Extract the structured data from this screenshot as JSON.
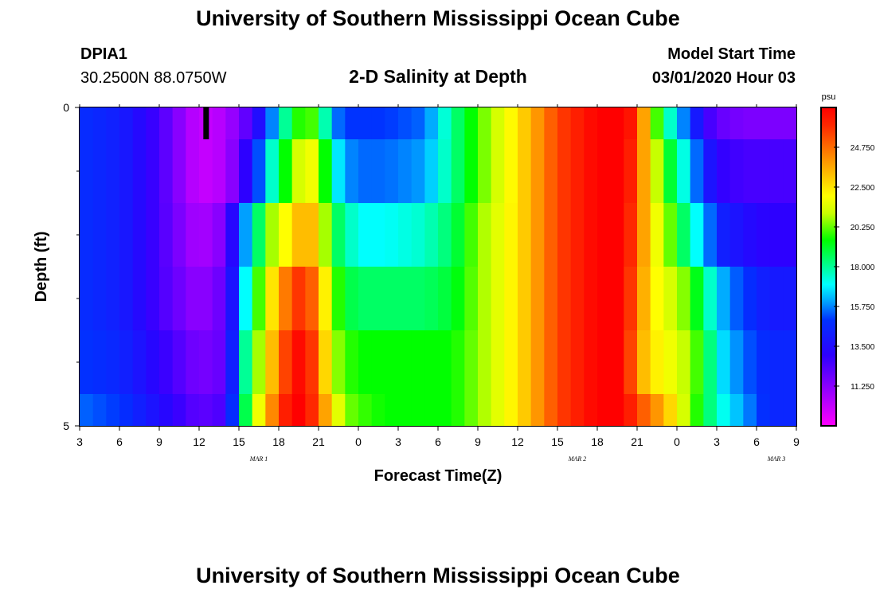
{
  "header": {
    "title": "University of Southern Mississippi Ocean Cube",
    "station_id": "DPIA1",
    "station_coords": "30.2500N 88.0750W",
    "plot_title": "2-D Salinity at Depth",
    "model_start_label": "Model Start Time",
    "model_start_value": "03/01/2020 Hour 03"
  },
  "footer": {
    "title": "University of Southern Mississippi Ocean Cube"
  },
  "chart_data": {
    "type": "heatmap",
    "title": "2-D Salinity at Depth",
    "xlabel": "Forecast Time(Z)",
    "ylabel": "Depth (ft)",
    "x_tick_labels": [
      "3",
      "6",
      "9",
      "12",
      "15",
      "18",
      "21",
      "0",
      "3",
      "6",
      "9",
      "12",
      "15",
      "18",
      "21",
      "0",
      "3",
      "6",
      "9"
    ],
    "date_labels": [
      {
        "text": "MAR 1",
        "tick_index": 4.5
      },
      {
        "text": "MAR 2",
        "tick_index": 12.5
      },
      {
        "text": "MAR 3",
        "tick_index": 17.5
      }
    ],
    "xlim_hours": [
      0,
      54
    ],
    "ylim_ft": [
      0,
      5
    ],
    "y_tick_labels": [
      "0",
      "5"
    ],
    "y_minor_ticks": 4,
    "colorbar": {
      "unit": "psu",
      "min": 9.0,
      "max": 27.0,
      "tick_labels": [
        "11.250",
        "13.500",
        "15.750",
        "18.000",
        "20.250",
        "22.500",
        "24.750"
      ],
      "tick_values": [
        11.25,
        13.5,
        15.75,
        18.0,
        20.25,
        22.5,
        24.75
      ]
    },
    "marker": {
      "hour": 9.5,
      "depth_from": 0,
      "depth_to": 0.5,
      "color": "#000000"
    },
    "layer_depths_ft": [
      0.25,
      1.0,
      2.0,
      3.0,
      4.0,
      4.75
    ],
    "layer_bounds_ft": [
      0,
      0.5,
      1.5,
      2.5,
      3.5,
      4.5,
      5.0
    ],
    "key_hours": [
      0,
      3,
      6,
      9,
      11,
      12,
      13,
      14,
      15,
      16,
      17,
      18,
      19,
      20,
      21,
      23,
      26,
      28,
      30,
      33,
      36,
      39,
      41,
      42,
      43,
      44,
      45,
      46,
      47,
      48,
      50,
      52,
      54
    ],
    "layers": [
      [
        14.8,
        14.2,
        12.5,
        10.0,
        10.5,
        11.5,
        12.5,
        14.5,
        17.0,
        19.0,
        20.5,
        19.5,
        16.0,
        15.0,
        15.0,
        15.0,
        15.5,
        18.0,
        20.0,
        22.5,
        25.5,
        27.0,
        27.0,
        26.0,
        21.5,
        18.5,
        16.5,
        15.0,
        13.0,
        12.0,
        11.5,
        11.5,
        11.5
      ],
      [
        14.8,
        14.2,
        12.5,
        10.0,
        10.5,
        12.0,
        14.0,
        16.5,
        18.5,
        20.5,
        22.0,
        21.5,
        17.5,
        16.0,
        15.5,
        15.5,
        16.0,
        18.0,
        20.0,
        22.5,
        25.5,
        27.0,
        27.0,
        25.5,
        22.0,
        20.0,
        18.0,
        16.5,
        14.5,
        13.0,
        12.5,
        12.5,
        12.5
      ],
      [
        14.8,
        14.2,
        12.5,
        10.5,
        11.5,
        15.0,
        17.0,
        20.0,
        21.5,
        22.5,
        24.0,
        22.5,
        19.0,
        18.0,
        17.0,
        17.0,
        17.5,
        18.5,
        20.5,
        22.5,
        25.5,
        27.0,
        27.0,
        25.0,
        22.5,
        21.0,
        19.5,
        17.5,
        16.5,
        14.5,
        13.5,
        13.0,
        13.0
      ],
      [
        14.8,
        14.2,
        12.5,
        11.0,
        12.0,
        15.5,
        18.5,
        21.5,
        23.5,
        25.5,
        26.0,
        24.0,
        20.5,
        19.0,
        18.5,
        18.5,
        18.5,
        19.0,
        20.5,
        22.5,
        25.5,
        27.0,
        27.0,
        24.5,
        22.5,
        21.5,
        21.0,
        20.0,
        18.5,
        16.5,
        15.0,
        14.0,
        14.0
      ],
      [
        15.0,
        14.5,
        13.0,
        11.5,
        12.0,
        16.5,
        19.5,
        22.0,
        24.5,
        26.5,
        27.0,
        24.5,
        21.0,
        20.0,
        19.5,
        19.5,
        19.5,
        19.5,
        20.5,
        22.5,
        25.5,
        27.0,
        27.0,
        24.0,
        22.5,
        22.0,
        21.5,
        20.5,
        19.5,
        17.0,
        15.5,
        14.5,
        14.5
      ],
      [
        15.5,
        15.0,
        13.5,
        12.0,
        12.5,
        17.0,
        20.5,
        23.0,
        25.5,
        27.0,
        27.0,
        25.0,
        22.5,
        20.5,
        20.0,
        19.5,
        19.5,
        19.5,
        20.5,
        22.5,
        25.5,
        27.0,
        27.0,
        25.5,
        24.5,
        23.5,
        22.0,
        20.5,
        19.0,
        17.5,
        16.0,
        14.5,
        14.5
      ]
    ]
  }
}
